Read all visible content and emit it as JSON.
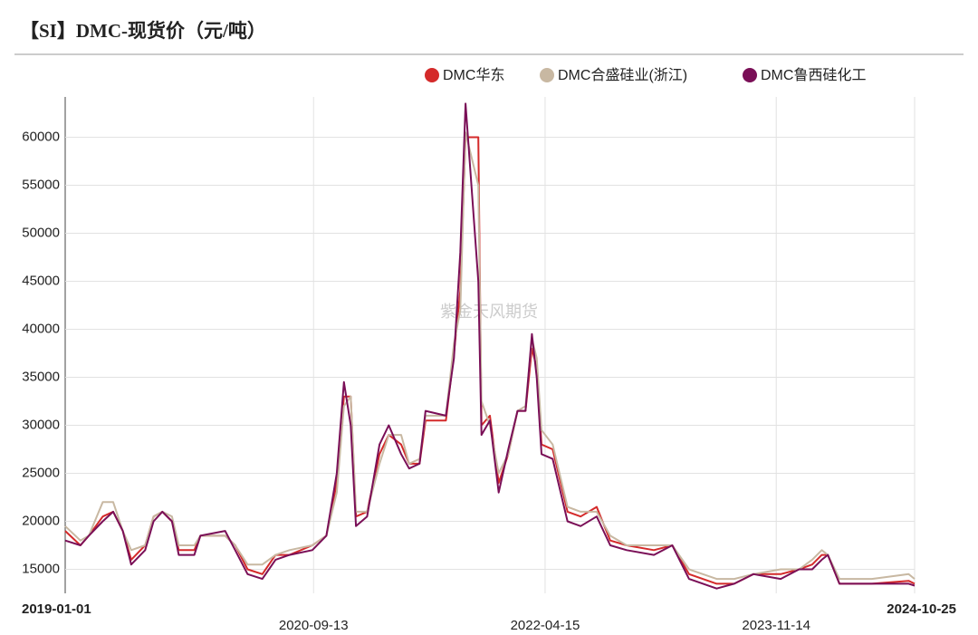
{
  "chart_data": {
    "type": "line",
    "title": "【SI】DMC-现货价（元/吨）",
    "watermark": "紫金天风期货",
    "x": [
      "2019-01-01",
      "2019-02-08",
      "2019-03-01",
      "2019-04-05",
      "2019-05-01",
      "2019-05-25",
      "2019-06-15",
      "2019-07-20",
      "2019-08-10",
      "2019-09-01",
      "2019-09-25",
      "2019-10-12",
      "2019-11-20",
      "2019-12-05",
      "2020-02-05",
      "2020-03-01",
      "2020-04-01",
      "2020-05-08",
      "2020-06-10",
      "2020-07-15",
      "2020-09-10",
      "2020-10-15",
      "2020-11-10",
      "2020-11-28",
      "2020-12-15",
      "2020-12-28",
      "2021-01-25",
      "2021-02-25",
      "2021-03-20",
      "2021-04-20",
      "2021-05-10",
      "2021-06-05",
      "2021-06-20",
      "2021-08-10",
      "2021-08-30",
      "2021-09-15",
      "2021-09-28",
      "2021-10-30",
      "2021-11-07",
      "2021-11-28",
      "2021-12-20",
      "2022-01-13",
      "2022-02-05",
      "2022-02-25",
      "2022-03-13",
      "2022-03-25",
      "2022-04-06",
      "2022-05-04",
      "2022-06-10",
      "2022-07-13",
      "2022-08-22",
      "2022-09-25",
      "2022-11-05",
      "2023-01-12",
      "2023-02-27",
      "2023-04-10",
      "2023-06-18",
      "2023-08-01",
      "2023-09-18",
      "2023-11-25",
      "2024-01-10",
      "2024-02-12",
      "2024-03-07",
      "2024-03-22",
      "2024-04-20",
      "2024-07-10",
      "2024-10-10",
      "2024-10-25"
    ],
    "series": [
      {
        "name": "DMC华东",
        "color": "#d42a2a",
        "values": [
          19000,
          17500,
          18500,
          20500,
          21000,
          19000,
          16000,
          17500,
          20500,
          21000,
          20000,
          17000,
          17000,
          18500,
          18500,
          17500,
          15000,
          14500,
          16500,
          16500,
          17500,
          18500,
          24000,
          33000,
          33000,
          20500,
          21000,
          27000,
          29000,
          28000,
          26000,
          26000,
          30500,
          30500,
          37500,
          44000,
          60000,
          60000,
          30000,
          31000,
          24000,
          27000,
          31500,
          31500,
          38000,
          36000,
          28000,
          27500,
          21000,
          20500,
          21500,
          18000,
          17500,
          17000,
          17500,
          14500,
          13500,
          13500,
          14500,
          14500,
          15000,
          15500,
          16500,
          16500,
          13500,
          13500,
          13800,
          13500
        ]
      },
      {
        "name": "DMC合盛硅业(浙江)",
        "color": "#c8b8a2",
        "values": [
          19500,
          18000,
          18500,
          22000,
          22000,
          19000,
          17000,
          17500,
          20500,
          21000,
          20500,
          17500,
          17500,
          18500,
          18500,
          17500,
          15500,
          15500,
          16500,
          17000,
          17500,
          18500,
          23000,
          32000,
          33000,
          21000,
          21000,
          26000,
          29000,
          29000,
          26000,
          26500,
          31000,
          31000,
          38500,
          42000,
          60500,
          55000,
          32500,
          30000,
          25000,
          27000,
          31500,
          32000,
          39000,
          37000,
          29500,
          28000,
          21500,
          21000,
          21000,
          18500,
          17500,
          17500,
          17500,
          15000,
          14000,
          14000,
          14500,
          15000,
          15000,
          16000,
          17000,
          16500,
          14000,
          14000,
          14500,
          14000
        ]
      },
      {
        "name": "DMC鲁西硅化工",
        "color": "#7a0f57",
        "values": [
          18000,
          17500,
          18500,
          20000,
          21000,
          19000,
          15500,
          17000,
          20000,
          21000,
          20000,
          16500,
          16500,
          18500,
          19000,
          17000,
          14500,
          14000,
          16000,
          16500,
          17000,
          18500,
          25000,
          34500,
          30000,
          19500,
          20500,
          28000,
          30000,
          27000,
          25500,
          26000,
          31500,
          31000,
          37000,
          48000,
          63500,
          45000,
          29000,
          30500,
          23000,
          27500,
          31500,
          31500,
          39500,
          35000,
          27000,
          26500,
          20000,
          19500,
          20500,
          17500,
          17000,
          16500,
          17500,
          14000,
          13000,
          13500,
          14500,
          14000,
          15000,
          15000,
          16000,
          16500,
          13500,
          13500,
          13500,
          13300
        ]
      }
    ],
    "xlim": [
      "2019-01-01",
      "2024-10-25"
    ],
    "xticks": [
      "2019-01-01",
      "2020-09-13",
      "2022-04-15",
      "2023-11-14",
      "2024-10-25"
    ],
    "ylim": [
      12500,
      64200
    ],
    "yticks": [
      15000,
      20000,
      25000,
      30000,
      35000,
      40000,
      45000,
      50000,
      55000,
      60000
    ],
    "grid": true,
    "legend": "top"
  }
}
